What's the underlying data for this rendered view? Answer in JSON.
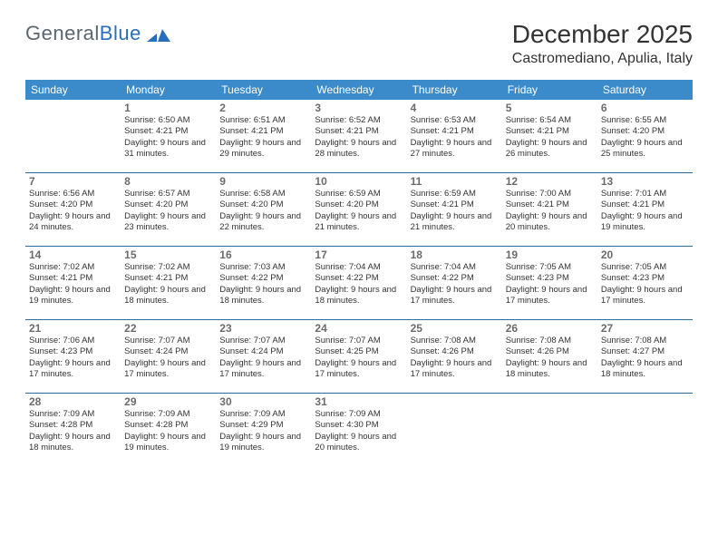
{
  "brand": {
    "part1": "General",
    "part2": "Blue"
  },
  "title": "December 2025",
  "location": "Castromediano, Apulia, Italy",
  "colors": {
    "header_bg": "#3b8bca",
    "row_border": "#2d6aa0",
    "logo_gray": "#5b6770",
    "logo_blue": "#2a6ebb"
  },
  "weekdays": [
    "Sunday",
    "Monday",
    "Tuesday",
    "Wednesday",
    "Thursday",
    "Friday",
    "Saturday"
  ],
  "weeks": [
    [
      null,
      {
        "n": "1",
        "sr": "6:50 AM",
        "ss": "4:21 PM",
        "dl": "9 hours and 31 minutes."
      },
      {
        "n": "2",
        "sr": "6:51 AM",
        "ss": "4:21 PM",
        "dl": "9 hours and 29 minutes."
      },
      {
        "n": "3",
        "sr": "6:52 AM",
        "ss": "4:21 PM",
        "dl": "9 hours and 28 minutes."
      },
      {
        "n": "4",
        "sr": "6:53 AM",
        "ss": "4:21 PM",
        "dl": "9 hours and 27 minutes."
      },
      {
        "n": "5",
        "sr": "6:54 AM",
        "ss": "4:21 PM",
        "dl": "9 hours and 26 minutes."
      },
      {
        "n": "6",
        "sr": "6:55 AM",
        "ss": "4:20 PM",
        "dl": "9 hours and 25 minutes."
      }
    ],
    [
      {
        "n": "7",
        "sr": "6:56 AM",
        "ss": "4:20 PM",
        "dl": "9 hours and 24 minutes."
      },
      {
        "n": "8",
        "sr": "6:57 AM",
        "ss": "4:20 PM",
        "dl": "9 hours and 23 minutes."
      },
      {
        "n": "9",
        "sr": "6:58 AM",
        "ss": "4:20 PM",
        "dl": "9 hours and 22 minutes."
      },
      {
        "n": "10",
        "sr": "6:59 AM",
        "ss": "4:20 PM",
        "dl": "9 hours and 21 minutes."
      },
      {
        "n": "11",
        "sr": "6:59 AM",
        "ss": "4:21 PM",
        "dl": "9 hours and 21 minutes."
      },
      {
        "n": "12",
        "sr": "7:00 AM",
        "ss": "4:21 PM",
        "dl": "9 hours and 20 minutes."
      },
      {
        "n": "13",
        "sr": "7:01 AM",
        "ss": "4:21 PM",
        "dl": "9 hours and 19 minutes."
      }
    ],
    [
      {
        "n": "14",
        "sr": "7:02 AM",
        "ss": "4:21 PM",
        "dl": "9 hours and 19 minutes."
      },
      {
        "n": "15",
        "sr": "7:02 AM",
        "ss": "4:21 PM",
        "dl": "9 hours and 18 minutes."
      },
      {
        "n": "16",
        "sr": "7:03 AM",
        "ss": "4:22 PM",
        "dl": "9 hours and 18 minutes."
      },
      {
        "n": "17",
        "sr": "7:04 AM",
        "ss": "4:22 PM",
        "dl": "9 hours and 18 minutes."
      },
      {
        "n": "18",
        "sr": "7:04 AM",
        "ss": "4:22 PM",
        "dl": "9 hours and 17 minutes."
      },
      {
        "n": "19",
        "sr": "7:05 AM",
        "ss": "4:23 PM",
        "dl": "9 hours and 17 minutes."
      },
      {
        "n": "20",
        "sr": "7:05 AM",
        "ss": "4:23 PM",
        "dl": "9 hours and 17 minutes."
      }
    ],
    [
      {
        "n": "21",
        "sr": "7:06 AM",
        "ss": "4:23 PM",
        "dl": "9 hours and 17 minutes."
      },
      {
        "n": "22",
        "sr": "7:07 AM",
        "ss": "4:24 PM",
        "dl": "9 hours and 17 minutes."
      },
      {
        "n": "23",
        "sr": "7:07 AM",
        "ss": "4:24 PM",
        "dl": "9 hours and 17 minutes."
      },
      {
        "n": "24",
        "sr": "7:07 AM",
        "ss": "4:25 PM",
        "dl": "9 hours and 17 minutes."
      },
      {
        "n": "25",
        "sr": "7:08 AM",
        "ss": "4:26 PM",
        "dl": "9 hours and 17 minutes."
      },
      {
        "n": "26",
        "sr": "7:08 AM",
        "ss": "4:26 PM",
        "dl": "9 hours and 18 minutes."
      },
      {
        "n": "27",
        "sr": "7:08 AM",
        "ss": "4:27 PM",
        "dl": "9 hours and 18 minutes."
      }
    ],
    [
      {
        "n": "28",
        "sr": "7:09 AM",
        "ss": "4:28 PM",
        "dl": "9 hours and 18 minutes."
      },
      {
        "n": "29",
        "sr": "7:09 AM",
        "ss": "4:28 PM",
        "dl": "9 hours and 19 minutes."
      },
      {
        "n": "30",
        "sr": "7:09 AM",
        "ss": "4:29 PM",
        "dl": "9 hours and 19 minutes."
      },
      {
        "n": "31",
        "sr": "7:09 AM",
        "ss": "4:30 PM",
        "dl": "9 hours and 20 minutes."
      },
      null,
      null,
      null
    ]
  ],
  "labels": {
    "sunrise": "Sunrise:",
    "sunset": "Sunset:",
    "daylight": "Daylight:"
  }
}
